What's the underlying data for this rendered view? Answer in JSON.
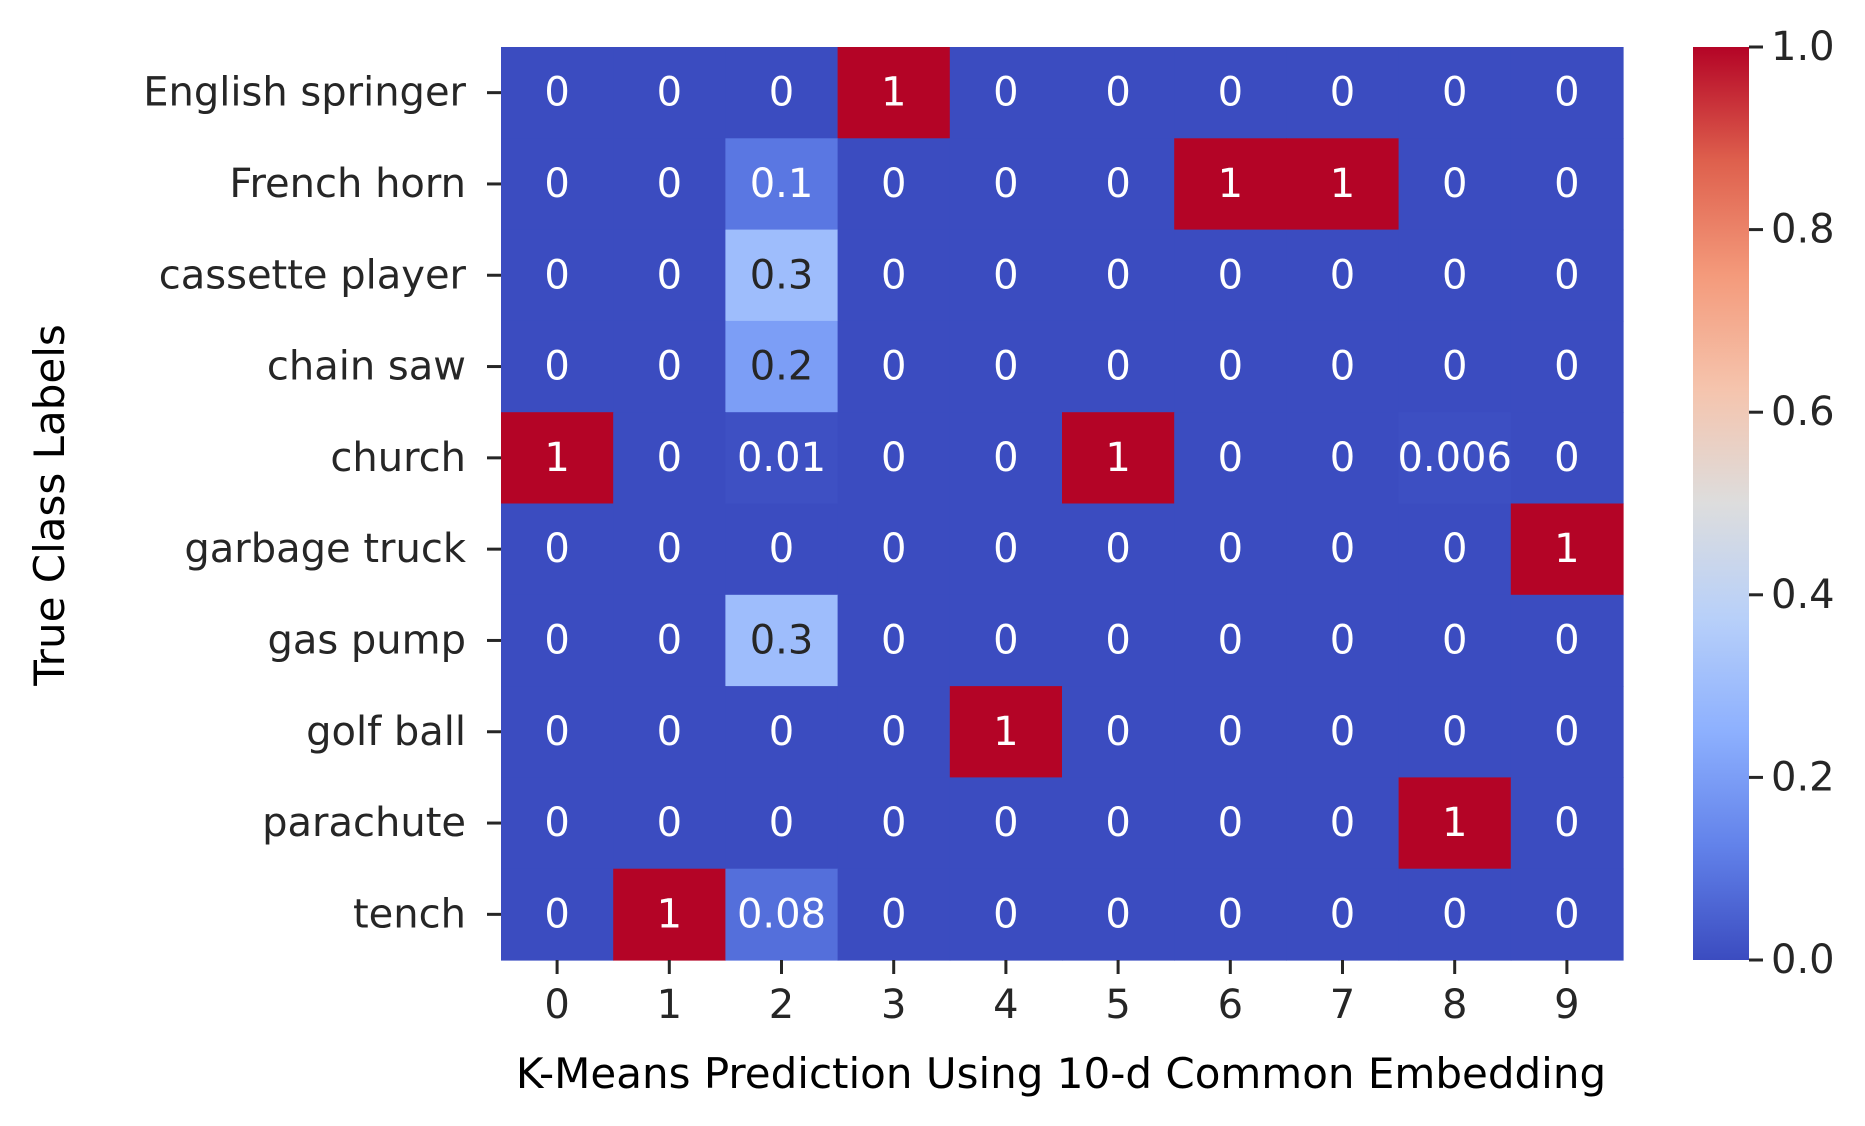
{
  "chart_data": {
    "type": "heatmap",
    "title": "",
    "xlabel": "K-Means Prediction Using 10-d Common Embedding",
    "ylabel": "True Class Labels",
    "x_categories": [
      "0",
      "1",
      "2",
      "3",
      "4",
      "5",
      "6",
      "7",
      "8",
      "9"
    ],
    "y_categories": [
      "English springer",
      "French horn",
      "cassette player",
      "chain saw",
      "church",
      "garbage truck",
      "gas pump",
      "golf ball",
      "parachute",
      "tench"
    ],
    "values": [
      [
        0,
        0,
        0,
        1,
        0,
        0,
        0,
        0,
        0,
        0
      ],
      [
        0,
        0,
        0.1,
        0,
        0,
        0,
        1,
        1,
        0,
        0
      ],
      [
        0,
        0,
        0.3,
        0,
        0,
        0,
        0,
        0,
        0,
        0
      ],
      [
        0,
        0,
        0.2,
        0,
        0,
        0,
        0,
        0,
        0,
        0
      ],
      [
        1,
        0,
        0.01,
        0,
        0,
        1,
        0,
        0,
        0.006,
        0
      ],
      [
        0,
        0,
        0,
        0,
        0,
        0,
        0,
        0,
        0,
        1
      ],
      [
        0,
        0,
        0.3,
        0,
        0,
        0,
        0,
        0,
        0,
        0
      ],
      [
        0,
        0,
        0,
        0,
        1,
        0,
        0,
        0,
        0,
        0
      ],
      [
        0,
        0,
        0,
        0,
        0,
        0,
        0,
        0,
        1,
        0
      ],
      [
        0,
        1,
        0.08,
        0,
        0,
        0,
        0,
        0,
        0,
        0
      ]
    ],
    "annotations": [
      [
        "0",
        "0",
        "0",
        "1",
        "0",
        "0",
        "0",
        "0",
        "0",
        "0"
      ],
      [
        "0",
        "0",
        "0.1",
        "0",
        "0",
        "0",
        "1",
        "1",
        "0",
        "0"
      ],
      [
        "0",
        "0",
        "0.3",
        "0",
        "0",
        "0",
        "0",
        "0",
        "0",
        "0"
      ],
      [
        "0",
        "0",
        "0.2",
        "0",
        "0",
        "0",
        "0",
        "0",
        "0",
        "0"
      ],
      [
        "1",
        "0",
        "0.01",
        "0",
        "0",
        "1",
        "0",
        "0",
        "0.006",
        "0"
      ],
      [
        "0",
        "0",
        "0",
        "0",
        "0",
        "0",
        "0",
        "0",
        "0",
        "1"
      ],
      [
        "0",
        "0",
        "0.3",
        "0",
        "0",
        "0",
        "0",
        "0",
        "0",
        "0"
      ],
      [
        "0",
        "0",
        "0",
        "0",
        "1",
        "0",
        "0",
        "0",
        "0",
        "0"
      ],
      [
        "0",
        "0",
        "0",
        "0",
        "0",
        "0",
        "0",
        "0",
        "1",
        "0"
      ],
      [
        "0",
        "1",
        "0.08",
        "0",
        "0",
        "0",
        "0",
        "0",
        "0",
        "0"
      ]
    ],
    "colorscale": "coolwarm",
    "color_range": [
      0.0,
      1.0
    ],
    "colorbar_ticks": [
      "0.0",
      "0.2",
      "0.4",
      "0.6",
      "0.8",
      "1.0"
    ],
    "colorbar_tick_values": [
      0.0,
      0.2,
      0.4,
      0.6,
      0.8,
      1.0
    ],
    "grid": false,
    "legend": "colorbar-right"
  }
}
